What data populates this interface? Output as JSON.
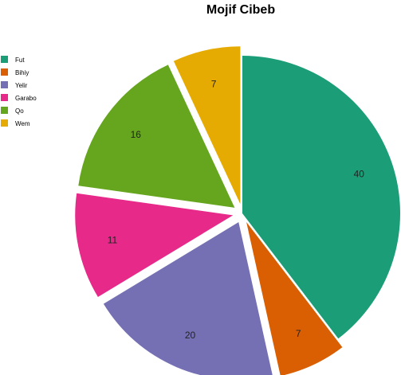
{
  "chart_data": {
    "type": "pie",
    "title": "Mojif Cibeb",
    "legend_position": "top-left",
    "slices": [
      {
        "label": "Fut",
        "value": 40,
        "color": "#1b9e77"
      },
      {
        "label": "Bihiy",
        "value": 7,
        "color": "#d95f02"
      },
      {
        "label": "Yelir",
        "value": 20,
        "color": "#7570b3"
      },
      {
        "label": "Garabo",
        "value": 11,
        "color": "#e7298a"
      },
      {
        "label": "Qo",
        "value": 16,
        "color": "#66a61e"
      },
      {
        "label": "Wem",
        "value": 7,
        "color": "#e6ab02"
      }
    ]
  }
}
